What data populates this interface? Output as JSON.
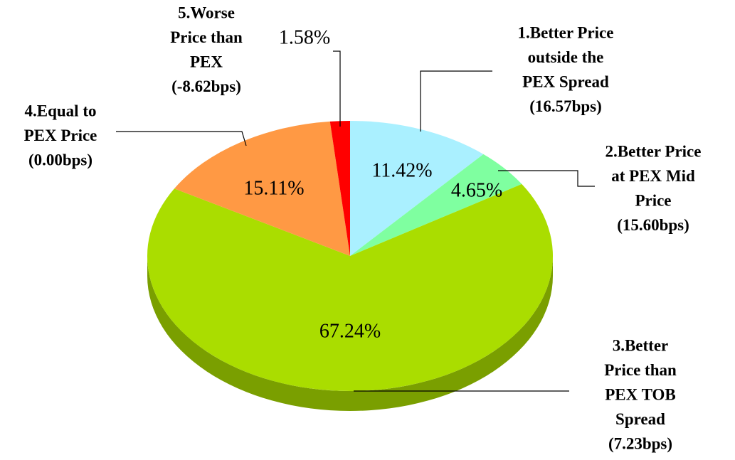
{
  "chart_data": {
    "type": "pie",
    "categories": [
      [
        "1.Better Price",
        "outside the",
        "PEX Spread",
        "(16.57bps)"
      ],
      [
        "2.Better Price",
        "at PEX Mid",
        "Price",
        "(15.60bps)"
      ],
      [
        "3.Better",
        "Price than",
        "PEX TOB",
        "Spread",
        "(7.23bps)"
      ],
      [
        "4.Equal to",
        "PEX Price",
        "(0.00bps)"
      ],
      [
        "5.Worse",
        "Price than",
        "PEX",
        "(-8.62bps)"
      ]
    ],
    "values": [
      11.42,
      4.65,
      67.24,
      15.11,
      1.58
    ],
    "value_labels": [
      "11.42%",
      "4.65%",
      "67.24%",
      "15.11%",
      "1.58%"
    ],
    "colors": [
      "#aaf0ff",
      "#7fffa0",
      "#aadd00",
      "#ff9944",
      "#ff0000"
    ]
  }
}
